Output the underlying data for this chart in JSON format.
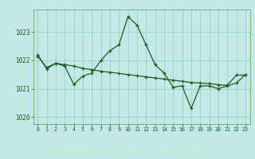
{
  "title": "Graphe pression niveau de la mer (hPa)",
  "bg_color": "#c2e8e8",
  "plot_bg_color": "#c2e8e8",
  "grid_color": "#a0cccc",
  "line_color": "#1a5c1a",
  "xlabel_bg": "#2a6b2a",
  "xlabel_fg": "#c8f0c8",
  "tick_label_color": "#1a5c1a",
  "series1_y": [
    1022.2,
    1021.7,
    1021.9,
    1021.8,
    1021.15,
    1021.45,
    1021.55,
    1022.0,
    1022.35,
    1022.55,
    1023.55,
    1023.25,
    1022.55,
    1021.85,
    1021.55,
    1021.05,
    1021.1,
    1020.3,
    1021.1,
    1021.1,
    1021.0,
    1021.1,
    1021.2,
    1021.5
  ],
  "series2_y": [
    1022.15,
    1021.75,
    1021.9,
    1021.85,
    1021.8,
    1021.72,
    1021.67,
    1021.62,
    1021.58,
    1021.54,
    1021.5,
    1021.46,
    1021.42,
    1021.38,
    1021.34,
    1021.3,
    1021.26,
    1021.22,
    1021.2,
    1021.18,
    1021.14,
    1021.12,
    1021.48,
    1021.48
  ],
  "ylim": [
    1019.75,
    1023.8
  ],
  "yticks": [
    1020,
    1021,
    1022,
    1023
  ],
  "xlim": [
    -0.5,
    23.5
  ],
  "xticks": [
    0,
    1,
    2,
    3,
    4,
    5,
    6,
    7,
    8,
    9,
    10,
    11,
    12,
    13,
    14,
    15,
    16,
    17,
    18,
    19,
    20,
    21,
    22,
    23
  ]
}
